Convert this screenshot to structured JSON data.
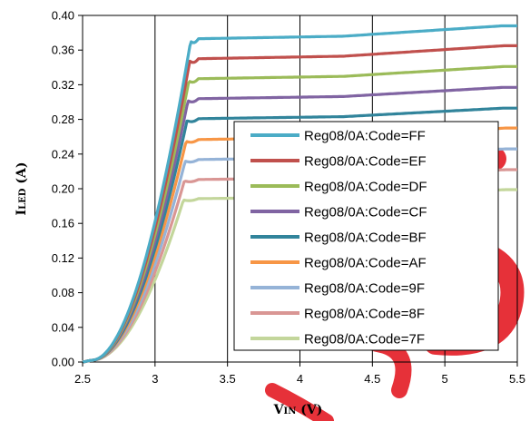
{
  "chart_data": {
    "type": "line",
    "title": "",
    "xlabel": {
      "main": "V",
      "sub": "IN",
      "unit": " (V)"
    },
    "ylabel": {
      "main": "I",
      "sub": "LED",
      "unit": " (A)"
    },
    "xlim": [
      2.5,
      5.5
    ],
    "ylim": [
      0.0,
      0.4
    ],
    "x_ticks": [
      "2.5",
      "3",
      "3.5",
      "4",
      "4.5",
      "5",
      "5.5"
    ],
    "y_ticks": [
      "0.00",
      "0.04",
      "0.08",
      "0.12",
      "0.16",
      "0.20",
      "0.24",
      "0.28",
      "0.32",
      "0.36",
      "0.40"
    ],
    "grid": {
      "x": true,
      "y": false
    },
    "legend_position": "center-right",
    "watermark": {
      "text": "ISS",
      "color": "#e31b23"
    },
    "series": [
      {
        "name": "Reg08/0A:Code=FF",
        "color": "#4bacc6",
        "plateau_start": 0.372,
        "end": 0.388
      },
      {
        "name": "Reg08/0A:Code=EF",
        "color": "#c0504d",
        "plateau_start": 0.349,
        "end": 0.365
      },
      {
        "name": "Reg08/0A:Code=DF",
        "color": "#9bbb59",
        "plateau_start": 0.326,
        "end": 0.341
      },
      {
        "name": "Reg08/0A:Code=CF",
        "color": "#8064a2",
        "plateau_start": 0.303,
        "end": 0.317
      },
      {
        "name": "Reg08/0A:Code=BF",
        "color": "#31849b",
        "plateau_start": 0.28,
        "end": 0.293
      },
      {
        "name": "Reg08/0A:Code=AF",
        "color": "#f79646",
        "plateau_start": 0.256,
        "end": 0.27
      },
      {
        "name": "Reg08/0A:Code=9F",
        "color": "#95b3d7",
        "plateau_start": 0.233,
        "end": 0.246
      },
      {
        "name": "Reg08/0A:Code=8F",
        "color": "#d99694",
        "plateau_start": 0.21,
        "end": 0.222
      },
      {
        "name": "Reg08/0A:Code=7F",
        "color": "#c3d69b",
        "plateau_start": 0.188,
        "end": 0.199
      }
    ]
  }
}
